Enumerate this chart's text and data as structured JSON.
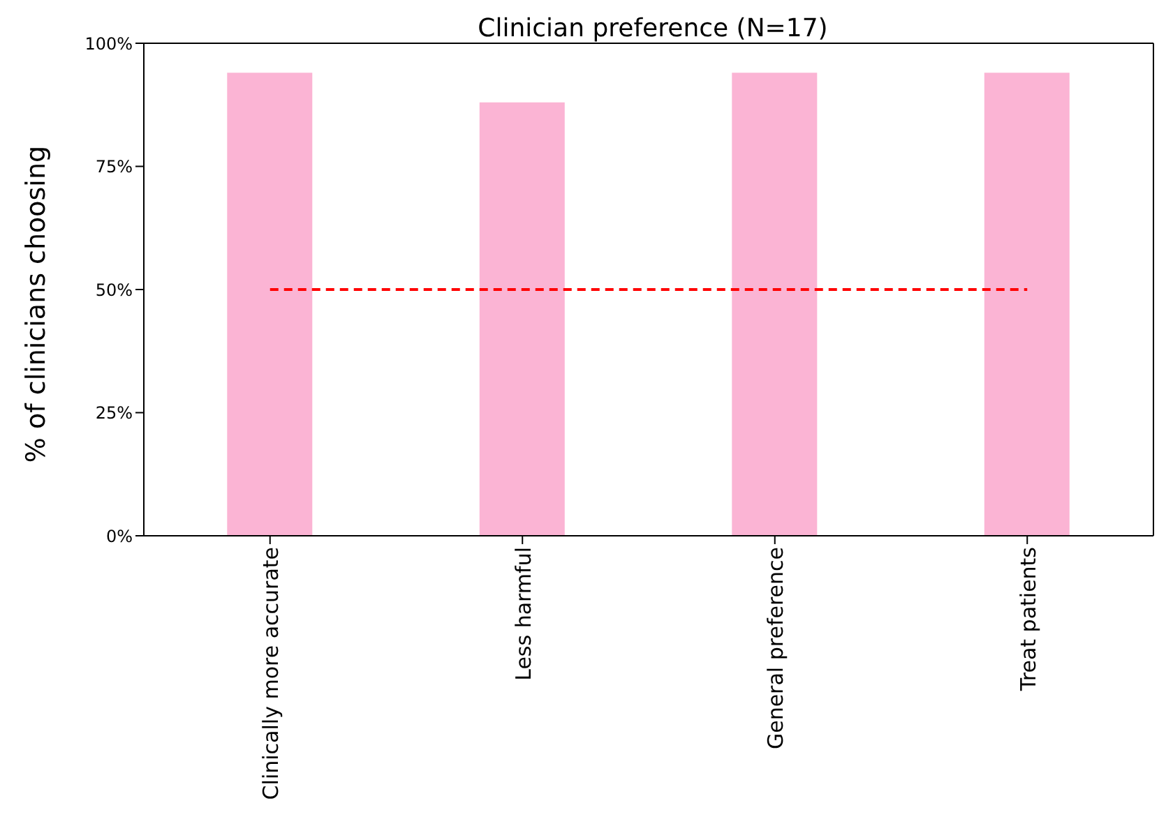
{
  "chart_data": {
    "type": "bar",
    "title": "Clinician preference (N=17)",
    "ylabel": "% of clinicians choosing",
    "categories": [
      "Clinically more accurate",
      "Less harmful",
      "General preference",
      "Treat patients"
    ],
    "values": [
      94,
      88,
      94,
      94
    ],
    "color": "#fbb4d4",
    "ylim": [
      0,
      100
    ],
    "yticks": [
      {
        "value": 0,
        "label": "0%"
      },
      {
        "value": 25,
        "label": "25%"
      },
      {
        "value": 50,
        "label": "50%"
      },
      {
        "value": 75,
        "label": "75%"
      },
      {
        "value": 100,
        "label": "100%"
      }
    ],
    "ref_lines": [
      {
        "axis": "y",
        "value": 50,
        "color": "#ff0000",
        "line_style": "dashed"
      }
    ],
    "grid": false,
    "legend": false
  }
}
